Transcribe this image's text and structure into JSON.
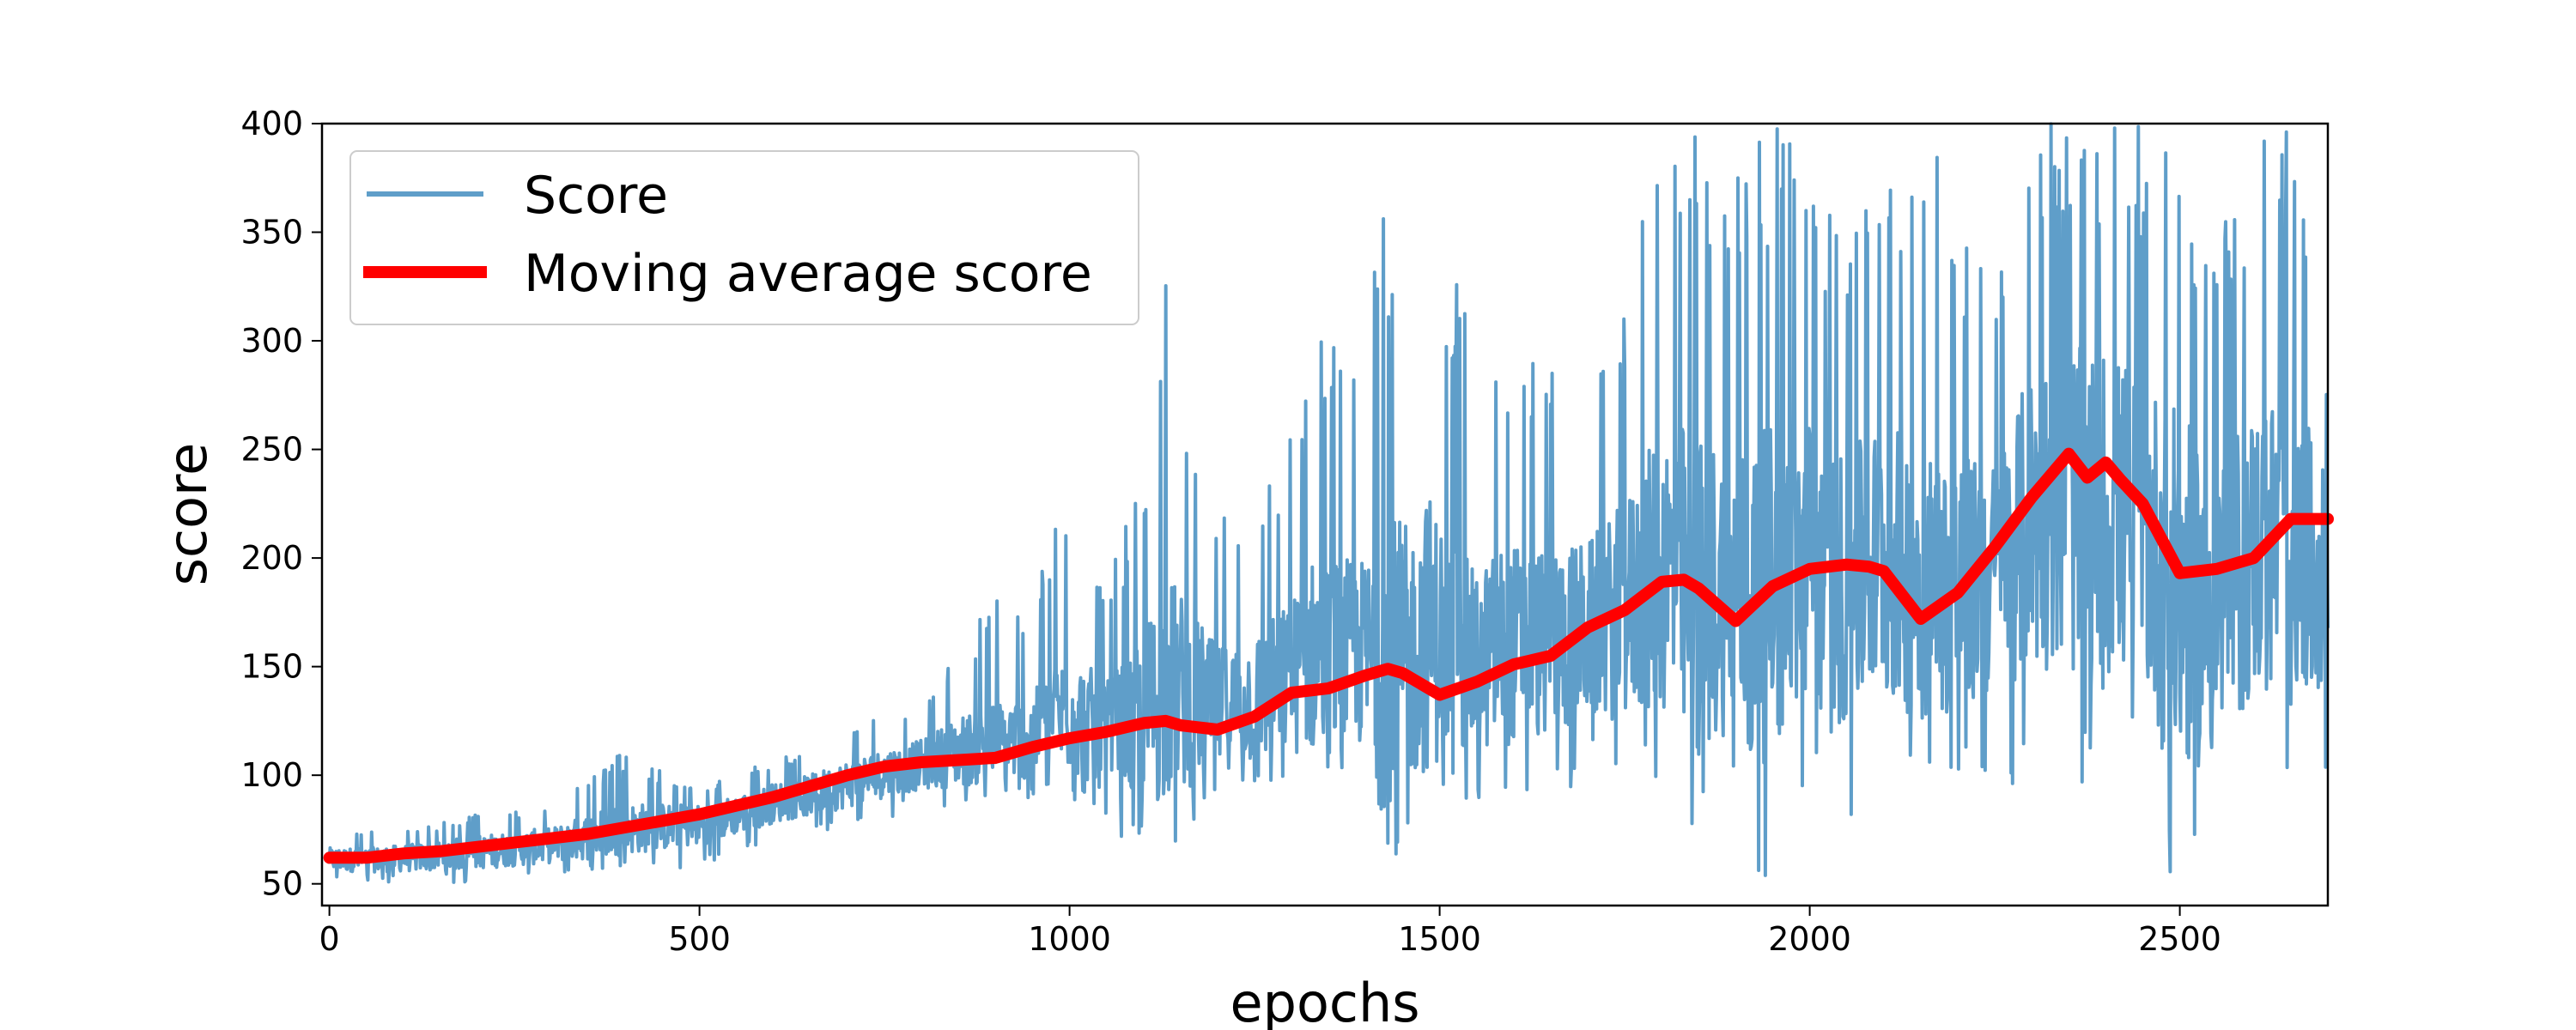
{
  "chart_data": {
    "type": "line",
    "title": "",
    "xlabel": "epochs",
    "ylabel": "score",
    "xlim": [
      -10,
      2700
    ],
    "ylim": [
      40,
      400
    ],
    "xticks": [
      0,
      500,
      1000,
      1500,
      2000,
      2500
    ],
    "yticks": [
      50,
      100,
      150,
      200,
      250,
      300,
      350,
      400
    ],
    "grid": false,
    "legend_position": "top-left",
    "series": [
      {
        "name": "Score",
        "color": "#5f9ec9",
        "style": "thin-noisy-line",
        "x_range": [
          0,
          2700
        ],
        "points_note_upper_envelope": [
          [
            0,
            75
          ],
          [
            100,
            75
          ],
          [
            200,
            82
          ],
          [
            300,
            85
          ],
          [
            390,
            110
          ],
          [
            500,
            95
          ],
          [
            550,
            100
          ],
          [
            600,
            108
          ],
          [
            650,
            110
          ],
          [
            700,
            120
          ],
          [
            800,
            135
          ],
          [
            850,
            165
          ],
          [
            900,
            182
          ],
          [
            950,
            185
          ],
          [
            1000,
            237
          ],
          [
            1050,
            185
          ],
          [
            1100,
            245
          ],
          [
            1130,
            326
          ],
          [
            1200,
            230
          ],
          [
            1250,
            237
          ],
          [
            1300,
            260
          ],
          [
            1330,
            316
          ],
          [
            1400,
            300
          ],
          [
            1420,
            362
          ],
          [
            1460,
            340
          ],
          [
            1485,
            400
          ],
          [
            1550,
            285
          ],
          [
            1580,
            315
          ],
          [
            1650,
            300
          ],
          [
            1700,
            282
          ],
          [
            1750,
            318
          ],
          [
            1800,
            400
          ],
          [
            1850,
            400
          ],
          [
            1900,
            400
          ],
          [
            1950,
            400
          ],
          [
            2000,
            400
          ],
          [
            2050,
            340
          ],
          [
            2100,
            400
          ],
          [
            2150,
            400
          ],
          [
            2200,
            365
          ],
          [
            2250,
            320
          ],
          [
            2300,
            400
          ],
          [
            2350,
            400
          ],
          [
            2400,
            400
          ],
          [
            2450,
            400
          ],
          [
            2500,
            400
          ],
          [
            2550,
            350
          ],
          [
            2600,
            400
          ],
          [
            2650,
            400
          ],
          [
            2700,
            270
          ]
        ],
        "points_note_lower_envelope": [
          [
            0,
            52
          ],
          [
            100,
            50
          ],
          [
            200,
            50
          ],
          [
            300,
            52
          ],
          [
            400,
            55
          ],
          [
            500,
            58
          ],
          [
            600,
            70
          ],
          [
            700,
            75
          ],
          [
            800,
            85
          ],
          [
            900,
            88
          ],
          [
            1000,
            90
          ],
          [
            1090,
            60
          ],
          [
            1120,
            60
          ],
          [
            1200,
            90
          ],
          [
            1300,
            90
          ],
          [
            1400,
            90
          ],
          [
            1420,
            40
          ],
          [
            1500,
            85
          ],
          [
            1600,
            90
          ],
          [
            1700,
            95
          ],
          [
            1800,
            90
          ],
          [
            1840,
            40
          ],
          [
            1900,
            95
          ],
          [
            1920,
            40
          ],
          [
            2000,
            95
          ],
          [
            2030,
            65
          ],
          [
            2100,
            95
          ],
          [
            2200,
            90
          ],
          [
            2300,
            95
          ],
          [
            2390,
            68
          ],
          [
            2450,
            95
          ],
          [
            2480,
            40
          ],
          [
            2550,
            45
          ],
          [
            2600,
            95
          ],
          [
            2670,
            60
          ],
          [
            2700,
            95
          ]
        ]
      },
      {
        "name": "Moving average score",
        "color": "#ff0000",
        "style": "thick-line",
        "x": [
          0,
          50,
          100,
          150,
          200,
          250,
          300,
          350,
          400,
          450,
          500,
          550,
          600,
          650,
          700,
          750,
          800,
          850,
          900,
          950,
          1000,
          1050,
          1100,
          1130,
          1150,
          1200,
          1250,
          1300,
          1350,
          1400,
          1430,
          1450,
          1500,
          1550,
          1600,
          1650,
          1700,
          1750,
          1800,
          1830,
          1850,
          1900,
          1950,
          2000,
          2050,
          2080,
          2100,
          2150,
          2200,
          2250,
          2300,
          2350,
          2375,
          2400,
          2420,
          2450,
          2500,
          2550,
          2600,
          2650,
          2700
        ],
        "y": [
          62,
          62,
          64,
          65,
          67,
          69,
          71,
          73,
          76,
          79,
          82,
          86,
          90,
          95,
          100,
          104,
          106,
          107,
          108,
          113,
          117,
          120,
          124,
          125,
          123,
          121,
          127,
          138,
          140,
          146,
          149,
          147,
          137,
          143,
          151,
          155,
          168,
          176,
          189,
          190,
          186,
          171,
          187,
          195,
          197,
          196,
          194,
          172,
          184,
          205,
          228,
          248,
          237,
          244,
          236,
          225,
          193,
          195,
          200,
          218,
          218
        ]
      }
    ]
  }
}
